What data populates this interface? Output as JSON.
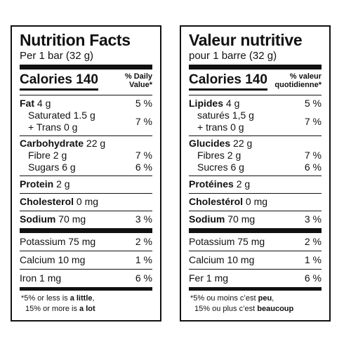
{
  "en": {
    "title": "Nutrition Facts",
    "serving": "Per 1 bar (32 g)",
    "calories_label": "Calories 140",
    "dv_header": "% Daily\nValue*",
    "fat": {
      "label": "Fat",
      "amount": "4 g",
      "pct": "5 %"
    },
    "saturated": {
      "label": "Saturated 1.5 g"
    },
    "trans": {
      "label": "+ Trans 0 g"
    },
    "sat_trans_pct": "7 %",
    "carbohydrate": {
      "label": "Carbohydrate",
      "amount": "22 g"
    },
    "fibre": {
      "label": "Fibre 2 g",
      "pct": "7 %"
    },
    "sugars": {
      "label": "Sugars 6 g",
      "pct": "6 %"
    },
    "protein": {
      "label": "Protein",
      "amount": "2 g"
    },
    "cholesterol": {
      "label": "Cholesterol",
      "amount": "0 mg"
    },
    "sodium": {
      "label": "Sodium",
      "amount": "70 mg",
      "pct": "3 %"
    },
    "potassium": {
      "label": "Potassium 75 mg",
      "pct": "2 %"
    },
    "calcium": {
      "label": "Calcium 10 mg",
      "pct": "1 %"
    },
    "iron": {
      "label": "Iron 1 mg",
      "pct": "6 %"
    },
    "footnote": {
      "line1_pre": "*5% or less is ",
      "line1_bold": "a little",
      "line1_post": ",",
      "line2_pre": "15% or more is ",
      "line2_bold": "a lot"
    }
  },
  "fr": {
    "title": "Valeur nutritive",
    "serving": "pour 1 barre (32 g)",
    "calories_label": "Calories 140",
    "dv_header": "% valeur\nquotidienne*",
    "fat": {
      "label": "Lipides",
      "amount": "4 g",
      "pct": "5 %"
    },
    "saturated": {
      "label": "saturés 1,5 g"
    },
    "trans": {
      "label": "+ trans 0 g"
    },
    "sat_trans_pct": "7 %",
    "carbohydrate": {
      "label": "Glucides",
      "amount": "22 g"
    },
    "fibre": {
      "label": "Fibres 2 g",
      "pct": "7 %"
    },
    "sugars": {
      "label": "Sucres 6 g",
      "pct": "6 %"
    },
    "protein": {
      "label": "Protéines",
      "amount": "2 g"
    },
    "cholesterol": {
      "label": "Cholestérol",
      "amount": "0 mg"
    },
    "sodium": {
      "label": "Sodium",
      "amount": "70 mg",
      "pct": "3 %"
    },
    "potassium": {
      "label": "Potassium 75 mg",
      "pct": "2 %"
    },
    "calcium": {
      "label": "Calcium 10 mg",
      "pct": "1 %"
    },
    "iron": {
      "label": "Fer 1 mg",
      "pct": "6 %"
    },
    "footnote": {
      "line1_pre": "*5% ou moins c’est ",
      "line1_bold": "peu",
      "line1_post": ",",
      "line2_pre": "15% ou plus c’est ",
      "line2_bold": "beaucoup"
    }
  }
}
